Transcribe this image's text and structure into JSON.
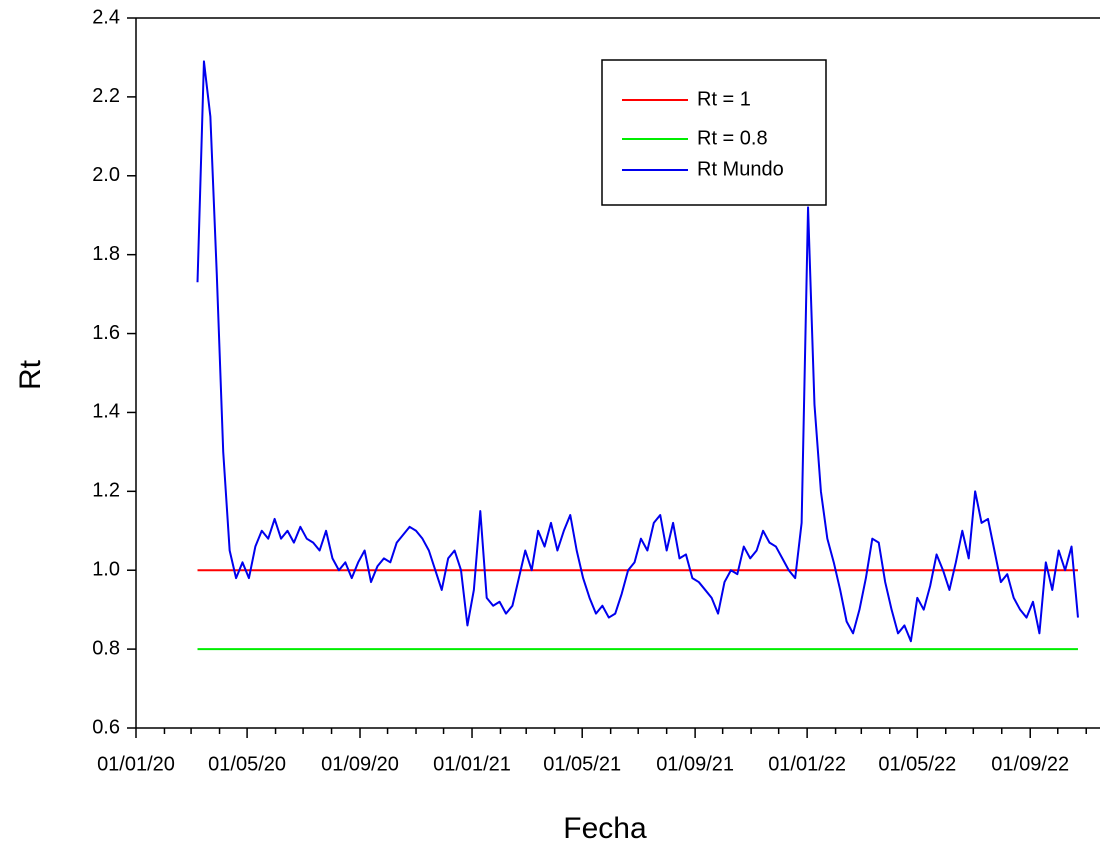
{
  "chart_data": {
    "type": "line",
    "x_label": "Fecha",
    "y_label": "Rt",
    "xlim": [
      "2020-01-01",
      "2022-11-16"
    ],
    "xticks": [
      {
        "value": "2020-01-01",
        "label": "01/01/20"
      },
      {
        "value": "2020-05-01",
        "label": "01/05/20"
      },
      {
        "value": "2020-09-01",
        "label": "01/09/20"
      },
      {
        "value": "2021-01-01",
        "label": "01/01/21"
      },
      {
        "value": "2021-05-01",
        "label": "01/05/21"
      },
      {
        "value": "2021-09-01",
        "label": "01/09/21"
      },
      {
        "value": "2022-01-01",
        "label": "01/01/22"
      },
      {
        "value": "2022-05-01",
        "label": "01/05/22"
      },
      {
        "value": "2022-09-01",
        "label": "01/09/22"
      }
    ],
    "xminorticks": [
      "2020-02-01",
      "2020-03-01",
      "2020-04-01",
      "2020-06-01",
      "2020-07-01",
      "2020-08-01",
      "2020-10-01",
      "2020-11-01",
      "2020-12-01",
      "2021-02-01",
      "2021-03-01",
      "2021-04-01",
      "2021-06-01",
      "2021-07-01",
      "2021-08-01",
      "2021-10-01",
      "2021-11-01",
      "2021-12-01",
      "2022-02-01",
      "2022-03-01",
      "2022-04-01",
      "2022-06-01",
      "2022-07-01",
      "2022-08-01",
      "2022-10-01",
      "2022-11-01"
    ],
    "ylim": [
      0.6,
      2.4
    ],
    "yticks": [
      0.6,
      0.8,
      {
        "value": 1,
        "label": "1.0"
      },
      1.2,
      1.4,
      1.6,
      1.8,
      {
        "value": 2,
        "label": "2.0"
      },
      2.2,
      2.4
    ],
    "legend": "upper right",
    "series": [
      {
        "name": "Rt = 1",
        "color": "#ff0000",
        "x": [
          "2020-03-08",
          "2022-10-23"
        ],
        "values": [
          1,
          1
        ]
      },
      {
        "name": "Rt = 0.8",
        "color": "#00ee00",
        "x": [
          "2020-03-08",
          "2022-10-23"
        ],
        "values": [
          0.8,
          0.8
        ]
      },
      {
        "name": "Rt Mundo",
        "color": "#0000ee",
        "x": [
          "2020-03-08",
          "2020-03-15",
          "2020-03-22",
          "2020-03-29",
          "2020-04-05",
          "2020-04-12",
          "2020-04-19",
          "2020-04-26",
          "2020-05-03",
          "2020-05-10",
          "2020-05-17",
          "2020-05-24",
          "2020-05-31",
          "2020-06-07",
          "2020-06-14",
          "2020-06-21",
          "2020-06-28",
          "2020-07-05",
          "2020-07-12",
          "2020-07-19",
          "2020-07-26",
          "2020-08-02",
          "2020-08-09",
          "2020-08-16",
          "2020-08-23",
          "2020-08-30",
          "2020-09-06",
          "2020-09-13",
          "2020-09-20",
          "2020-09-27",
          "2020-10-04",
          "2020-10-11",
          "2020-10-18",
          "2020-10-25",
          "2020-11-01",
          "2020-11-08",
          "2020-11-15",
          "2020-11-22",
          "2020-11-29",
          "2020-12-06",
          "2020-12-13",
          "2020-12-20",
          "2020-12-27",
          "2021-01-03",
          "2021-01-10",
          "2021-01-17",
          "2021-01-24",
          "2021-01-31",
          "2021-02-07",
          "2021-02-14",
          "2021-02-21",
          "2021-02-28",
          "2021-03-07",
          "2021-03-14",
          "2021-03-21",
          "2021-03-28",
          "2021-04-04",
          "2021-04-11",
          "2021-04-18",
          "2021-04-25",
          "2021-05-02",
          "2021-05-09",
          "2021-05-16",
          "2021-05-23",
          "2021-05-30",
          "2021-06-06",
          "2021-06-13",
          "2021-06-20",
          "2021-06-27",
          "2021-07-04",
          "2021-07-11",
          "2021-07-18",
          "2021-07-25",
          "2021-08-01",
          "2021-08-08",
          "2021-08-15",
          "2021-08-22",
          "2021-08-29",
          "2021-09-05",
          "2021-09-12",
          "2021-09-19",
          "2021-09-26",
          "2021-10-03",
          "2021-10-10",
          "2021-10-17",
          "2021-10-24",
          "2021-10-31",
          "2021-11-07",
          "2021-11-14",
          "2021-11-21",
          "2021-11-28",
          "2021-12-05",
          "2021-12-12",
          "2021-12-19",
          "2021-12-26",
          "2022-01-02",
          "2022-01-09",
          "2022-01-16",
          "2022-01-23",
          "2022-01-30",
          "2022-02-06",
          "2022-02-13",
          "2022-02-20",
          "2022-02-27",
          "2022-03-06",
          "2022-03-13",
          "2022-03-20",
          "2022-03-27",
          "2022-04-03",
          "2022-04-10",
          "2022-04-17",
          "2022-04-24",
          "2022-05-01",
          "2022-05-08",
          "2022-05-15",
          "2022-05-22",
          "2022-05-29",
          "2022-06-05",
          "2022-06-12",
          "2022-06-19",
          "2022-06-26",
          "2022-07-03",
          "2022-07-10",
          "2022-07-17",
          "2022-07-24",
          "2022-07-31",
          "2022-08-07",
          "2022-08-14",
          "2022-08-21",
          "2022-08-28",
          "2022-09-04",
          "2022-09-11",
          "2022-09-18",
          "2022-09-25",
          "2022-10-02",
          "2022-10-09",
          "2022-10-16",
          "2022-10-23"
        ],
        "values": [
          1.73,
          2.29,
          2.15,
          1.75,
          1.3,
          1.05,
          0.98,
          1.02,
          0.98,
          1.06,
          1.1,
          1.08,
          1.13,
          1.08,
          1.1,
          1.07,
          1.11,
          1.08,
          1.07,
          1.05,
          1.1,
          1.03,
          1.0,
          1.02,
          0.98,
          1.02,
          1.05,
          0.97,
          1.01,
          1.03,
          1.02,
          1.07,
          1.09,
          1.11,
          1.1,
          1.08,
          1.05,
          1.0,
          0.95,
          1.03,
          1.05,
          1.0,
          0.86,
          0.95,
          1.15,
          0.93,
          0.91,
          0.92,
          0.89,
          0.91,
          0.98,
          1.05,
          1.0,
          1.1,
          1.06,
          1.12,
          1.05,
          1.1,
          1.14,
          1.05,
          0.98,
          0.93,
          0.89,
          0.91,
          0.88,
          0.89,
          0.94,
          1.0,
          1.02,
          1.08,
          1.05,
          1.12,
          1.14,
          1.05,
          1.12,
          1.03,
          1.04,
          0.98,
          0.97,
          0.95,
          0.93,
          0.89,
          0.97,
          1.0,
          0.99,
          1.06,
          1.03,
          1.05,
          1.1,
          1.07,
          1.06,
          1.03,
          1.0,
          0.98,
          1.12,
          1.92,
          1.42,
          1.2,
          1.08,
          1.02,
          0.95,
          0.87,
          0.84,
          0.9,
          0.98,
          1.08,
          1.07,
          0.97,
          0.9,
          0.84,
          0.86,
          0.82,
          0.93,
          0.9,
          0.96,
          1.04,
          1.0,
          0.95,
          1.02,
          1.1,
          1.03,
          1.2,
          1.12,
          1.13,
          1.05,
          0.97,
          0.99,
          0.93,
          0.9,
          0.88,
          0.92,
          0.84,
          1.02,
          0.95,
          1.05,
          1.0,
          1.06,
          0.88
        ]
      }
    ]
  }
}
